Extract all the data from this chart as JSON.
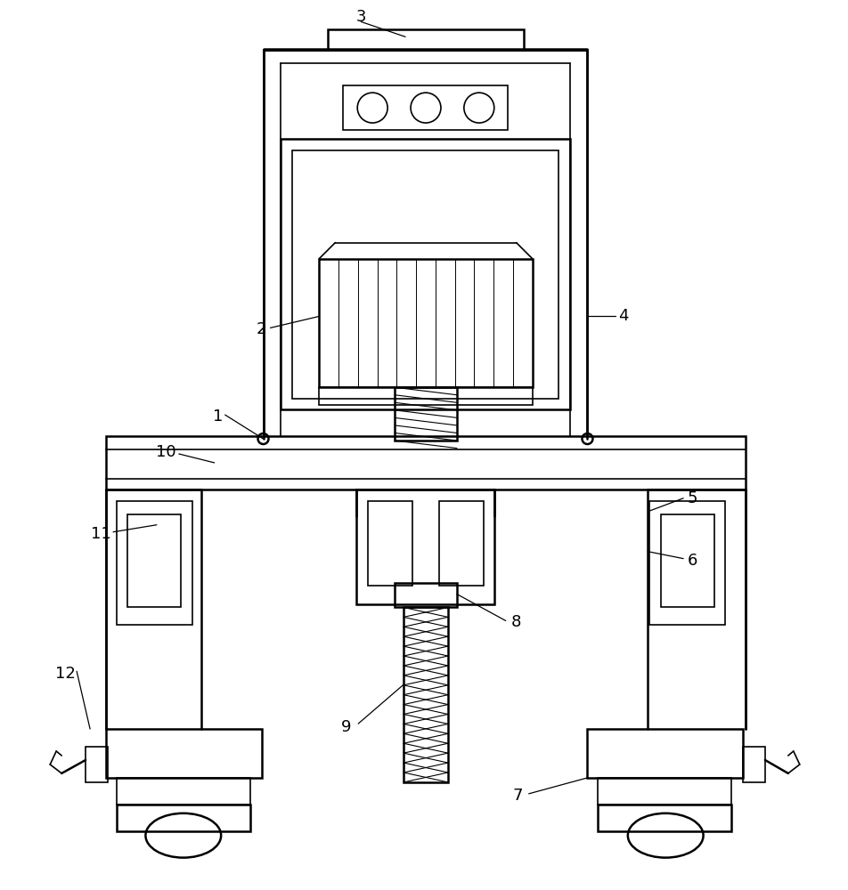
{
  "bg_color": "#ffffff",
  "line_color": "#000000",
  "lw_thin": 1.2,
  "lw_thick": 1.8,
  "fig_width": 9.53,
  "fig_height": 10.0
}
